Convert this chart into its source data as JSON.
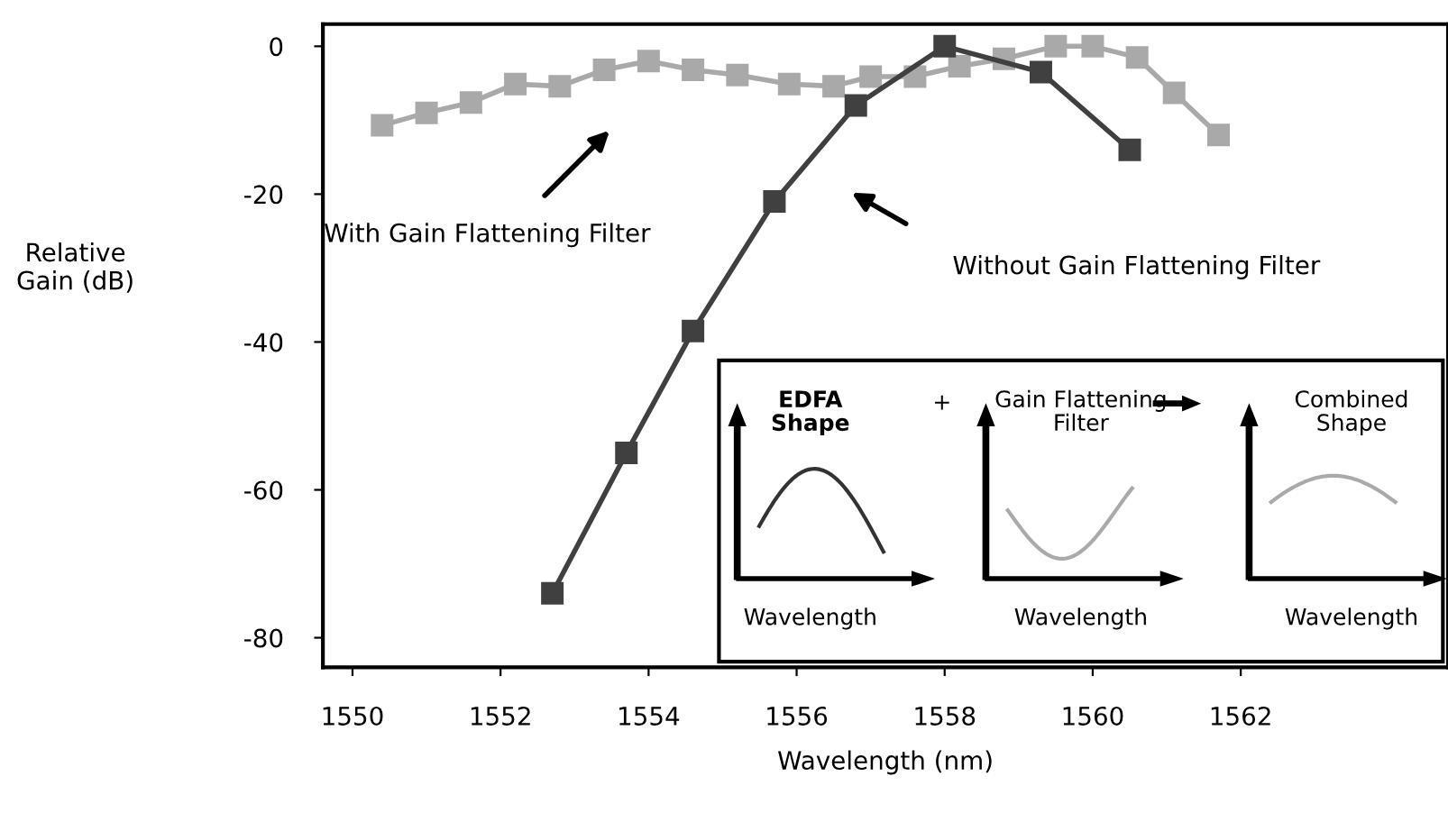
{
  "chart_data": {
    "type": "line",
    "xlabel": "Wavelength (nm)",
    "ylabel": "Relative\nGain (dB)",
    "xlim": [
      1549.6,
      1564.8
    ],
    "xticks": [
      1550,
      1552,
      1554,
      1556,
      1558,
      1560,
      1562
    ],
    "ylim": [
      -84,
      3
    ],
    "yticks": [
      0,
      -20,
      -40,
      -60,
      -80
    ],
    "grid": false,
    "legend": false,
    "marker": "square",
    "line_style": "solid",
    "series": [
      {
        "color": "#a9a9a9",
        "x": [
          1550.4,
          1551.0,
          1551.6,
          1552.2,
          1552.8,
          1553.4,
          1554.0,
          1554.6,
          1555.2,
          1555.9,
          1556.5,
          1557.0,
          1557.6,
          1558.2,
          1558.8,
          1559.5,
          1560.0,
          1560.6,
          1561.1,
          1561.7
        ],
        "values": [
          -10.7,
          -9.0,
          -7.6,
          -5.1,
          -5.4,
          -3.2,
          -2.0,
          -3.2,
          -3.9,
          -5.1,
          -5.4,
          -4.1,
          -4.1,
          -2.7,
          -1.7,
          0,
          0,
          -1.5,
          -6.3,
          -12
        ]
      },
      {
        "color": "#404040",
        "x": [
          1552.7,
          1553.7,
          1554.6,
          1555.7,
          1556.8,
          1558.0,
          1559.3,
          1560.5
        ],
        "values": [
          -74,
          -55,
          -38.5,
          -21,
          -8,
          0,
          -3.5,
          -14
        ]
      }
    ],
    "annotations": [
      "With Gain Flattening Filter",
      "Without Gain Flattening Filter",
      "EDFA\nShape",
      "+",
      "Gain Flattening\nFilter",
      "Combined\nShape",
      "Wavelength",
      "Wavelength",
      "Wavelength"
    ]
  }
}
